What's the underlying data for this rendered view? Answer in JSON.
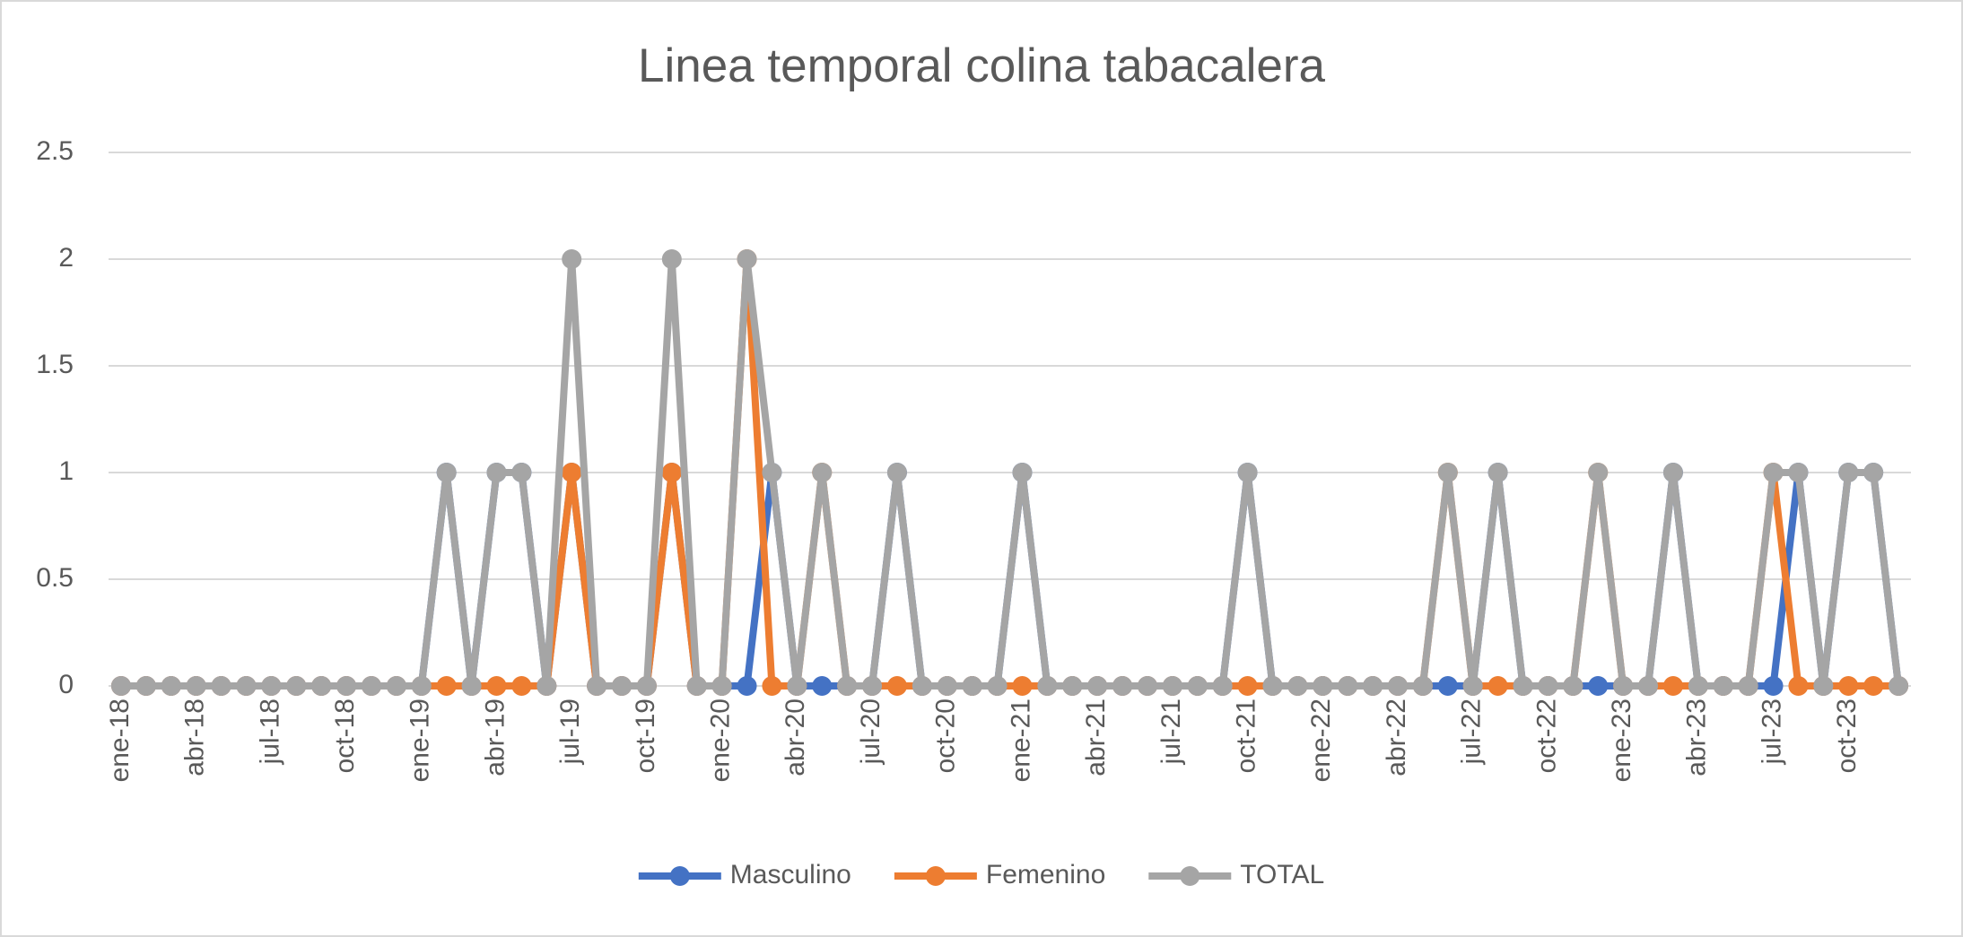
{
  "chart_data": {
    "type": "line",
    "title": "Linea temporal colina tabacalera",
    "categories": [
      "ene-18",
      null,
      null,
      "abr-18",
      null,
      null,
      "jul-18",
      null,
      null,
      "oct-18",
      null,
      null,
      "ene-19",
      null,
      null,
      "abr-19",
      null,
      null,
      "jul-19",
      null,
      null,
      "oct-19",
      null,
      null,
      "ene-20",
      null,
      null,
      "abr-20",
      null,
      null,
      "jul-20",
      null,
      null,
      "oct-20",
      null,
      null,
      "ene-21",
      null,
      null,
      "abr-21",
      null,
      null,
      "jul-21",
      null,
      null,
      "oct-21",
      null,
      null,
      "ene-22",
      null,
      null,
      "abr-22",
      null,
      null,
      "jul-22",
      null,
      null,
      "oct-22",
      null,
      null,
      "ene-23",
      null,
      null,
      "abr-23",
      null,
      null,
      "jul-23",
      null,
      null,
      "oct-23",
      null,
      null
    ],
    "series": [
      {
        "name": "Masculino",
        "color": "#4472c4",
        "values": [
          0,
          0,
          0,
          0,
          0,
          0,
          0,
          0,
          0,
          0,
          0,
          0,
          0,
          1,
          0,
          1,
          1,
          0,
          1,
          0,
          0,
          0,
          1,
          0,
          0,
          0,
          1,
          0,
          0,
          0,
          0,
          1,
          0,
          0,
          0,
          0,
          1,
          0,
          0,
          0,
          0,
          0,
          0,
          0,
          0,
          1,
          0,
          0,
          0,
          0,
          0,
          0,
          0,
          0,
          0,
          1,
          0,
          0,
          0,
          0,
          0,
          0,
          1,
          0,
          0,
          0,
          0,
          1,
          0,
          1,
          1,
          0
        ]
      },
      {
        "name": "Femenino",
        "color": "#ed7d31",
        "values": [
          0,
          0,
          0,
          0,
          0,
          0,
          0,
          0,
          0,
          0,
          0,
          0,
          0,
          0,
          0,
          0,
          0,
          0,
          1,
          0,
          0,
          0,
          1,
          0,
          0,
          2,
          0,
          0,
          1,
          0,
          0,
          0,
          0,
          0,
          0,
          0,
          0,
          0,
          0,
          0,
          0,
          0,
          0,
          0,
          0,
          0,
          0,
          0,
          0,
          0,
          0,
          0,
          0,
          1,
          0,
          0,
          0,
          0,
          0,
          1,
          0,
          0,
          0,
          0,
          0,
          0,
          1,
          0,
          0,
          0,
          0,
          0
        ]
      },
      {
        "name": "TOTAL",
        "color": "#a5a5a5",
        "values": [
          0,
          0,
          0,
          0,
          0,
          0,
          0,
          0,
          0,
          0,
          0,
          0,
          0,
          1,
          0,
          1,
          1,
          0,
          2,
          0,
          0,
          0,
          2,
          0,
          0,
          2,
          1,
          0,
          1,
          0,
          0,
          1,
          0,
          0,
          0,
          0,
          1,
          0,
          0,
          0,
          0,
          0,
          0,
          0,
          0,
          1,
          0,
          0,
          0,
          0,
          0,
          0,
          0,
          1,
          0,
          1,
          0,
          0,
          0,
          1,
          0,
          0,
          1,
          0,
          0,
          0,
          1,
          1,
          0,
          1,
          1,
          0
        ]
      }
    ],
    "ylim": [
      0,
      2.5
    ],
    "yticks": [
      0,
      0.5,
      1,
      1.5,
      2,
      2.5
    ],
    "grid": true,
    "legend": "bottom"
  }
}
